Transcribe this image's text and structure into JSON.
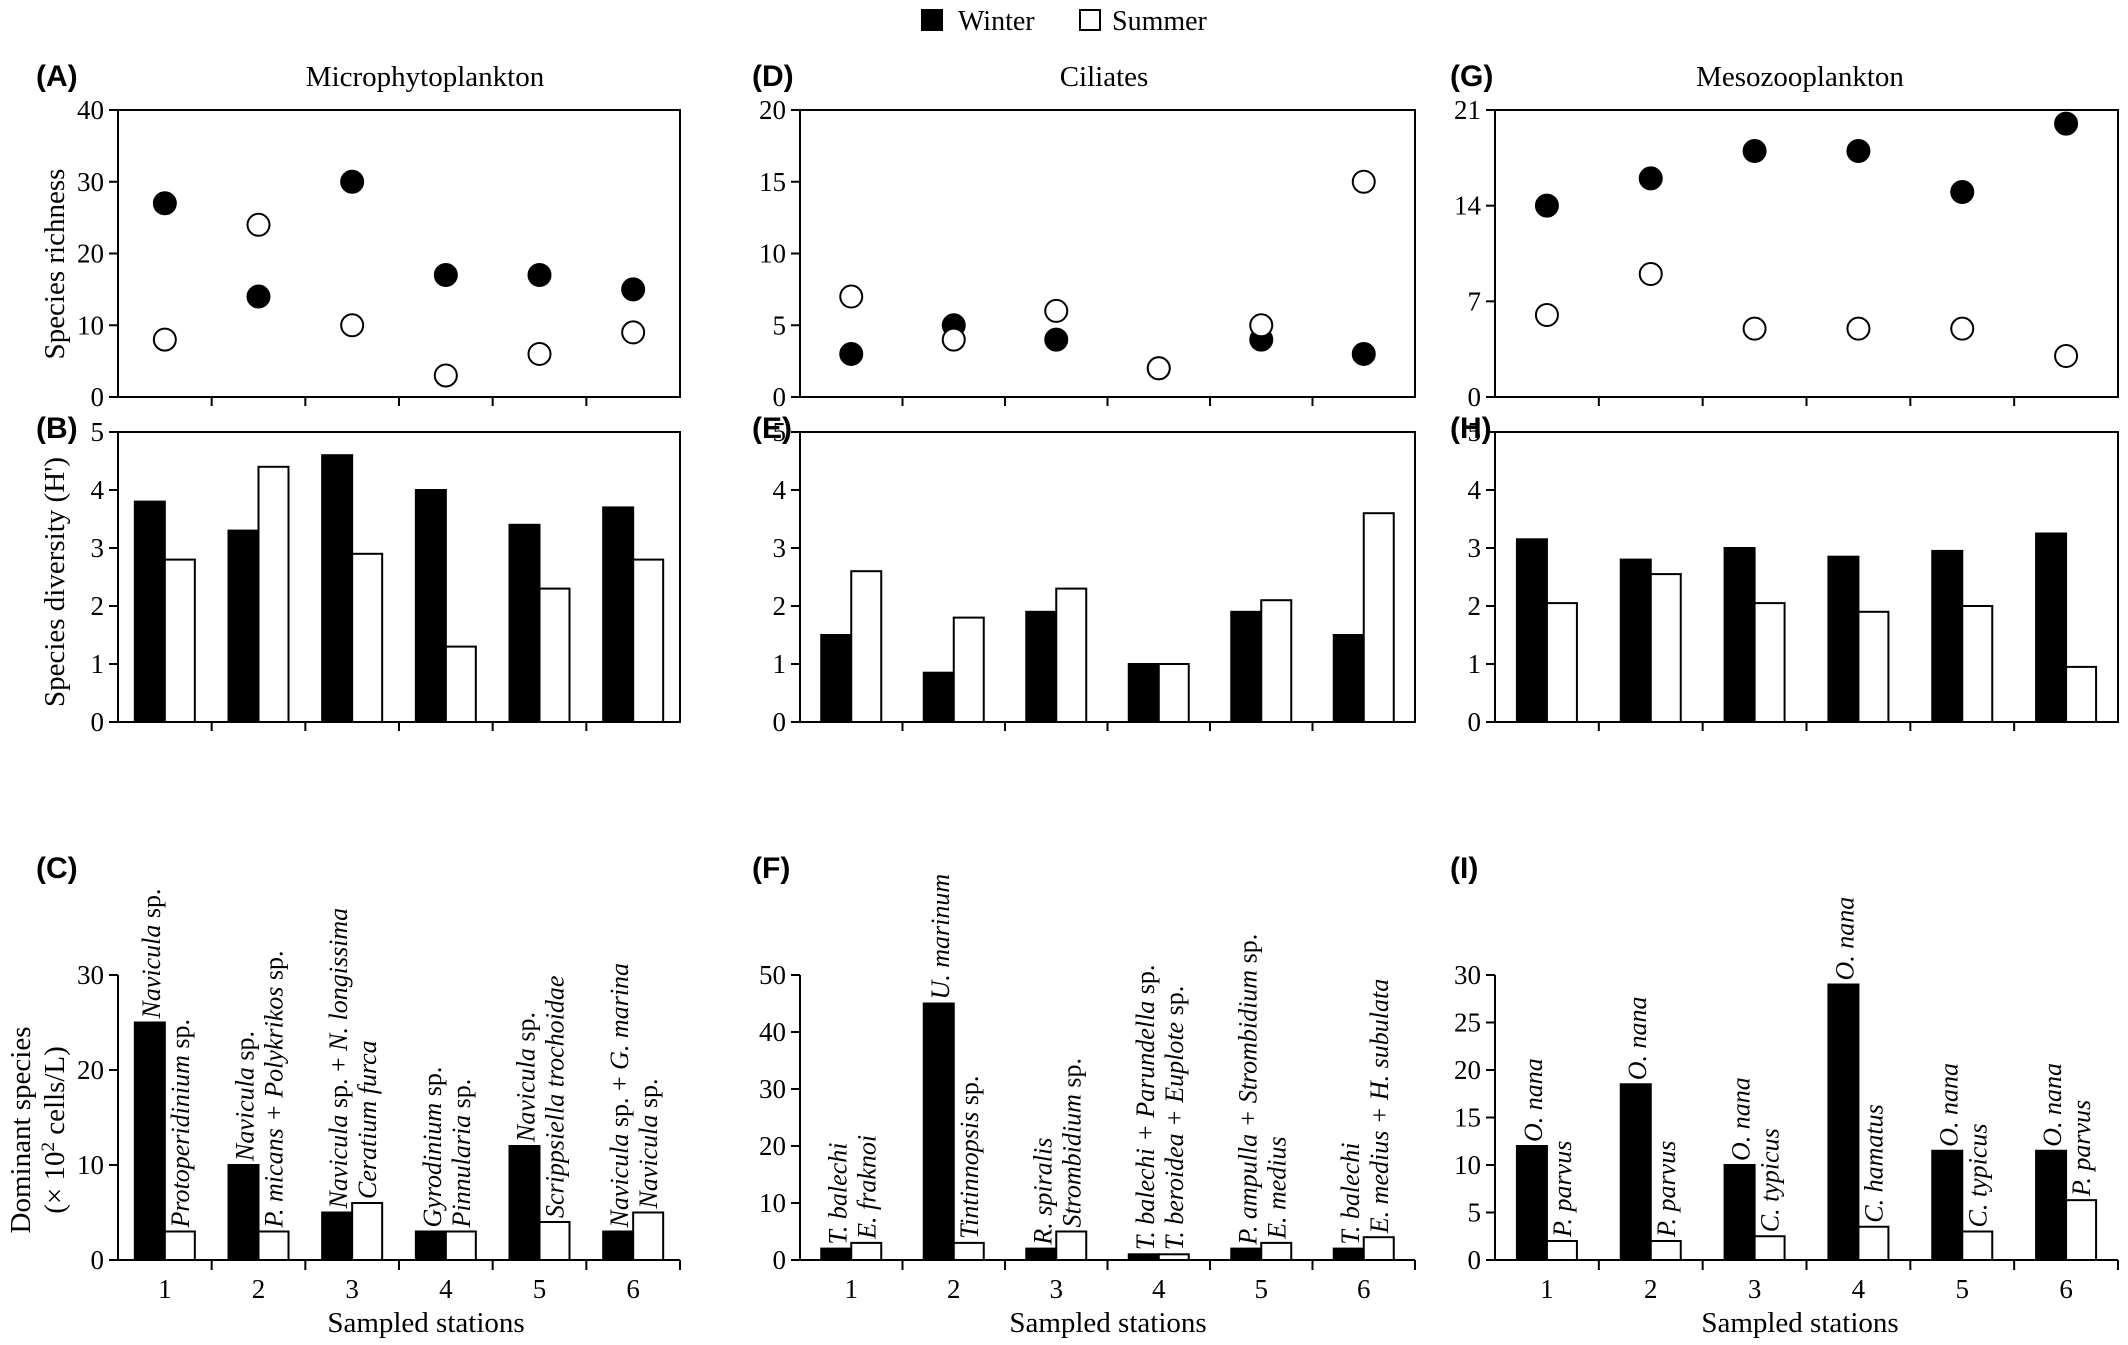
{
  "legend": [
    {
      "label": "Winter",
      "color": "#000000"
    },
    {
      "label": "Summer",
      "color": "#ffffff"
    }
  ],
  "labels": {
    "richness": "Species richness",
    "diversity": "Species diversity  (H')",
    "dominant": [
      "Dominant species",
      "(× 10",
      "2",
      " cells/L)"
    ],
    "xlabel": "Sampled stations"
  },
  "columns": [
    {
      "title": "Microphytoplankton",
      "letters": [
        "(A)",
        "(B)",
        "(C)"
      ]
    },
    {
      "title": "Ciliates",
      "letters": [
        "(D)",
        "(E)",
        "(F)"
      ]
    },
    {
      "title": "Mesozooplankton",
      "letters": [
        "(G)",
        "(H)",
        "(I)"
      ]
    }
  ],
  "chart_data": [
    {
      "panel": "(A)",
      "title": "Microphytoplankton",
      "type": "scatter",
      "ylabel": "Species richness",
      "categories": [
        "1",
        "2",
        "3",
        "4",
        "5",
        "6"
      ],
      "ylim": [
        0,
        40
      ],
      "yticks": [
        0,
        10,
        20,
        30,
        40
      ],
      "series": [
        {
          "name": "Winter",
          "values": [
            27,
            14,
            30,
            17,
            17,
            15
          ]
        },
        {
          "name": "Summer",
          "values": [
            8,
            24,
            10,
            3,
            6,
            9
          ]
        }
      ]
    },
    {
      "panel": "(D)",
      "title": "Ciliates",
      "type": "scatter",
      "categories": [
        "1",
        "2",
        "3",
        "4",
        "5",
        "6"
      ],
      "ylim": [
        0,
        20
      ],
      "yticks": [
        0,
        5,
        10,
        15,
        20
      ],
      "series": [
        {
          "name": "Winter",
          "values": [
            3,
            5,
            4,
            2,
            4,
            3
          ]
        },
        {
          "name": "Summer",
          "values": [
            7,
            4,
            6,
            2,
            5,
            15
          ]
        }
      ]
    },
    {
      "panel": "(G)",
      "title": "Mesozooplankton",
      "type": "scatter",
      "categories": [
        "1",
        "2",
        "3",
        "4",
        "5",
        "6"
      ],
      "ylim": [
        0,
        21
      ],
      "yticks": [
        0,
        7,
        14,
        21
      ],
      "series": [
        {
          "name": "Winter",
          "values": [
            14,
            16,
            18,
            18,
            15,
            20
          ]
        },
        {
          "name": "Summer",
          "values": [
            6,
            9,
            5,
            5,
            5,
            3
          ]
        }
      ]
    },
    {
      "panel": "(B)",
      "type": "bar",
      "ylabel": "Species diversity  (H')",
      "categories": [
        "1",
        "2",
        "3",
        "4",
        "5",
        "6"
      ],
      "ylim": [
        0,
        5
      ],
      "yticks": [
        0,
        1,
        2,
        3,
        4,
        5
      ],
      "series": [
        {
          "name": "Winter",
          "values": [
            3.8,
            3.3,
            4.6,
            4.0,
            3.4,
            3.7
          ]
        },
        {
          "name": "Summer",
          "values": [
            2.8,
            4.4,
            2.9,
            1.3,
            2.3,
            2.8
          ]
        }
      ]
    },
    {
      "panel": "(E)",
      "type": "bar",
      "categories": [
        "1",
        "2",
        "3",
        "4",
        "5",
        "6"
      ],
      "ylim": [
        0,
        5
      ],
      "yticks": [
        0,
        1,
        2,
        3,
        4,
        5
      ],
      "series": [
        {
          "name": "Winter",
          "values": [
            1.5,
            0.85,
            1.9,
            1.0,
            1.9,
            1.5
          ]
        },
        {
          "name": "Summer",
          "values": [
            2.6,
            1.8,
            2.3,
            1.0,
            2.1,
            3.6
          ]
        }
      ]
    },
    {
      "panel": "(H)",
      "type": "bar",
      "categories": [
        "1",
        "2",
        "3",
        "4",
        "5",
        "6"
      ],
      "ylim": [
        0,
        5
      ],
      "yticks": [
        0,
        1,
        2,
        3,
        4,
        5
      ],
      "series": [
        {
          "name": "Winter",
          "values": [
            3.15,
            2.8,
            3.0,
            2.85,
            2.95,
            3.25
          ]
        },
        {
          "name": "Summer",
          "values": [
            2.05,
            2.55,
            2.05,
            1.9,
            2.0,
            0.95
          ]
        }
      ]
    },
    {
      "panel": "(C)",
      "type": "bar",
      "ylabel": "Dominant species (× 10^2 cells/L)",
      "xlabel": "Sampled stations",
      "categories": [
        "1",
        "2",
        "3",
        "4",
        "5",
        "6"
      ],
      "ylim": [
        0,
        30
      ],
      "yticks": [
        0,
        10,
        20,
        30
      ],
      "series": [
        {
          "name": "Winter",
          "values": [
            25,
            10,
            5,
            3,
            12,
            3
          ]
        },
        {
          "name": "Summer",
          "values": [
            3,
            3,
            6,
            3,
            4,
            5
          ]
        }
      ],
      "annotations": [
        {
          "winter": [
            [
              "Navicula",
              true
            ],
            [
              " sp.",
              false
            ]
          ],
          "summer": [
            [
              "Protoperidinium",
              true
            ],
            [
              " sp.",
              false
            ]
          ]
        },
        {
          "winter": [
            [
              "Navicula",
              true
            ],
            [
              " sp.",
              false
            ]
          ],
          "summer": [
            [
              "P.  micans + Polykrikos",
              true
            ],
            [
              " sp.",
              false
            ]
          ]
        },
        {
          "winter": [
            [
              "Navicula",
              true
            ],
            [
              " sp. + ",
              false
            ],
            [
              "N. longissima",
              true
            ]
          ],
          "summer": [
            [
              "Ceratium furca",
              true
            ]
          ]
        },
        {
          "winter": [
            [
              "Gyrodinium",
              true
            ],
            [
              " sp.",
              false
            ]
          ],
          "summer": [
            [
              "Pinnularia",
              true
            ],
            [
              " sp.",
              false
            ]
          ]
        },
        {
          "winter": [
            [
              "Navicula",
              true
            ],
            [
              " sp.",
              false
            ]
          ],
          "summer": [
            [
              "Scrippsiella trochoidae",
              true
            ]
          ]
        },
        {
          "winter": [
            [
              "Navicula",
              true
            ],
            [
              " sp. + ",
              false
            ],
            [
              "G. marina",
              true
            ]
          ],
          "summer": [
            [
              "Navicula",
              true
            ],
            [
              " sp.",
              false
            ]
          ]
        }
      ]
    },
    {
      "panel": "(F)",
      "type": "bar",
      "xlabel": "Sampled stations",
      "categories": [
        "1",
        "2",
        "3",
        "4",
        "5",
        "6"
      ],
      "ylim": [
        0,
        50
      ],
      "yticks": [
        0,
        10,
        20,
        30,
        40,
        50
      ],
      "series": [
        {
          "name": "Winter",
          "values": [
            2,
            45,
            2,
            1,
            2,
            2
          ]
        },
        {
          "name": "Summer",
          "values": [
            3,
            3,
            5,
            1,
            3,
            4
          ]
        }
      ],
      "annotations": [
        {
          "winter": [
            [
              "T.  balechi",
              true
            ]
          ],
          "summer": [
            [
              "E.  fraknoi",
              true
            ]
          ]
        },
        {
          "winter": [
            [
              "U. marinum",
              true
            ]
          ],
          "summer": [
            [
              "Tintinnopsis",
              true
            ],
            [
              " sp.",
              false
            ]
          ]
        },
        {
          "winter": [
            [
              "R. spiralis",
              true
            ]
          ],
          "summer": [
            [
              "Strombidium",
              true
            ],
            [
              " sp.",
              false
            ]
          ]
        },
        {
          "winter": [
            [
              "T.  balechi + Parundella",
              true
            ],
            [
              " sp.",
              false
            ]
          ],
          "summer": [
            [
              "T.  beroidea + Euplote",
              true
            ],
            [
              " sp.",
              false
            ]
          ]
        },
        {
          "winter": [
            [
              "P.  ampulla + Strombidium",
              true
            ],
            [
              " sp.",
              false
            ]
          ],
          "summer": [
            [
              "E.  medius",
              true
            ]
          ]
        },
        {
          "winter": [
            [
              "T.  balechi",
              true
            ]
          ],
          "summer": [
            [
              "E.  medius + H. subulata",
              true
            ]
          ]
        }
      ]
    },
    {
      "panel": "(I)",
      "type": "bar",
      "xlabel": "Sampled stations",
      "categories": [
        "1",
        "2",
        "3",
        "4",
        "5",
        "6"
      ],
      "ylim": [
        0,
        30
      ],
      "yticks": [
        0,
        5,
        10,
        15,
        20,
        25,
        30
      ],
      "series": [
        {
          "name": "Winter",
          "values": [
            12,
            18.5,
            10,
            29,
            11.5,
            11.5
          ]
        },
        {
          "name": "Summer",
          "values": [
            2,
            2,
            2.5,
            3.5,
            3,
            6.3
          ]
        }
      ],
      "annotations": [
        {
          "winter": [
            [
              "O. nana",
              true
            ]
          ],
          "summer": [
            [
              "P.  parvus",
              true
            ]
          ]
        },
        {
          "winter": [
            [
              "O.  nana",
              true
            ]
          ],
          "summer": [
            [
              "P.  parvus",
              true
            ]
          ]
        },
        {
          "winter": [
            [
              "O.  nana",
              true
            ]
          ],
          "summer": [
            [
              "C. typicus",
              true
            ]
          ]
        },
        {
          "winter": [
            [
              "O.  nana",
              true
            ]
          ],
          "summer": [
            [
              "C. hamatus",
              true
            ]
          ]
        },
        {
          "winter": [
            [
              "O.  nana",
              true
            ]
          ],
          "summer": [
            [
              "C. typicus",
              true
            ]
          ]
        },
        {
          "winter": [
            [
              "O.  nana",
              true
            ]
          ],
          "summer": [
            [
              "P.  parvus",
              true
            ]
          ]
        }
      ]
    }
  ]
}
